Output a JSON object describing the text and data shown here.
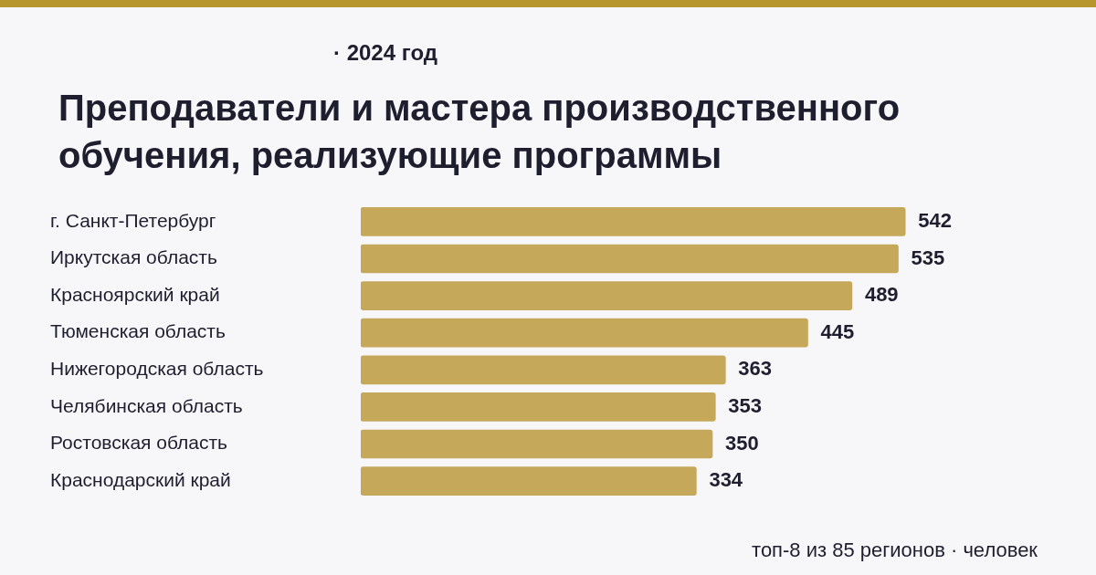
{
  "chart_data": {
    "type": "bar",
    "orientation": "horizontal",
    "subtitle": "· 2024 год",
    "title": "Преподаватели и мастера производственного обучения, реализующие программы",
    "categories": [
      "г. Санкт-Петербург",
      "Иркутская область",
      "Красноярский край",
      "Тюменская область",
      "Нижегородская область",
      "Челябинская область",
      "Ростовская область",
      "Краснодарский край"
    ],
    "values": [
      542,
      535,
      489,
      445,
      363,
      353,
      350,
      334
    ],
    "color": "#c5a85a",
    "data_labels": true,
    "annotations": [
      "топ-8 из 85 регионов · человек"
    ]
  }
}
